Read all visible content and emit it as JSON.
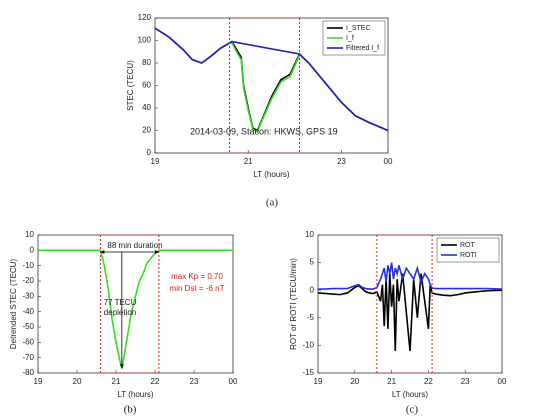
{
  "chart_data": [
    {
      "type": "line",
      "caption": "(a)",
      "xlabel": "LT (hours)",
      "ylabel": "STEC (TECU)",
      "annotations": [
        "2014-03-09, Station: HKWS, GPS 19"
      ],
      "xlim": [
        19,
        24
      ],
      "xticks": [
        19,
        21,
        23,
        {
          "value": 24,
          "label": "00"
        }
      ],
      "ylim": [
        0,
        120
      ],
      "yticks": [
        0,
        20,
        40,
        60,
        80,
        100,
        120
      ],
      "highlight": [
        20.6,
        22.1
      ],
      "highlight_color": "#e0201b",
      "legend": "upper right",
      "series": [
        {
          "name": "I_STEC",
          "color": "#000000",
          "x": [
            19,
            19.3,
            19.6,
            19.8,
            20,
            20.2,
            20.4,
            20.65,
            20.75,
            20.85,
            20.9,
            21,
            21.1,
            21.2,
            21.3,
            21.5,
            21.7,
            21.9,
            22.1,
            22.3,
            22.6,
            23,
            23.3,
            23.6,
            24
          ],
          "values": [
            111,
            103,
            92,
            83,
            80,
            86,
            93,
            99,
            92,
            85,
            60,
            40,
            22,
            20,
            30,
            50,
            65,
            70,
            88,
            80,
            65,
            45,
            33,
            27,
            20
          ]
        },
        {
          "name": "I_f",
          "color": "#33dd22",
          "x": [
            20.65,
            20.75,
            20.85,
            20.9,
            21,
            21.1,
            21.2,
            21.3,
            21.5,
            21.7,
            21.9,
            22.1
          ],
          "values": [
            98,
            90,
            83,
            58,
            38,
            21,
            19,
            29,
            48,
            63,
            68,
            87
          ]
        },
        {
          "name": "Filtered I_f",
          "color": "#2222bb",
          "x": [
            19,
            19.3,
            19.6,
            19.8,
            20,
            20.2,
            20.4,
            20.65,
            22.1,
            22.3,
            22.6,
            23,
            23.3,
            23.6,
            24
          ],
          "values": [
            111,
            103,
            92,
            83,
            80,
            86,
            93,
            99,
            88,
            80,
            65,
            45,
            33,
            27,
            20
          ]
        }
      ]
    },
    {
      "type": "line",
      "caption": "(b)",
      "xlabel": "LT (hours)",
      "ylabel": "Detrended STEC (TECU)",
      "annotations": [
        "88 min duration",
        "77 TECU",
        "depletion",
        "max Kp = 0.70",
        "min Dst = -6 nT"
      ],
      "xlim": [
        19,
        24
      ],
      "xticks": [
        19,
        20,
        21,
        22,
        23,
        {
          "value": 24,
          "label": "00"
        }
      ],
      "ylim": [
        -80,
        10
      ],
      "yticks": [
        -80,
        -70,
        -60,
        -50,
        -40,
        -30,
        -20,
        -10,
        0,
        10
      ],
      "highlight": [
        20.6,
        22.1
      ],
      "highlight_color": "#e0201b",
      "series": [
        {
          "color": "#33dd22",
          "x": [
            19,
            20.6,
            20.7,
            20.8,
            20.9,
            21,
            21.1,
            21.15,
            21.2,
            21.3,
            21.4,
            21.5,
            21.6,
            21.7,
            21.8,
            21.9,
            22,
            22.1,
            24
          ],
          "values": [
            0,
            0,
            -10,
            -25,
            -45,
            -60,
            -72,
            -77,
            -70,
            -55,
            -40,
            -30,
            -20,
            -15,
            -8,
            -5,
            -2,
            0,
            0
          ]
        }
      ]
    },
    {
      "type": "line",
      "caption": "(c)",
      "xlabel": "LT (hours)",
      "ylabel": "ROT or ROTI (TECU/min)",
      "xlim": [
        19,
        24
      ],
      "xticks": [
        19,
        20,
        21,
        22,
        23,
        {
          "value": 24,
          "label": "00"
        }
      ],
      "ylim": [
        -15,
        10
      ],
      "yticks": [
        -15,
        -10,
        -5,
        0,
        5,
        10
      ],
      "highlight": [
        20.6,
        22.1
      ],
      "highlight_color": "#e0201b",
      "legend": "upper right",
      "series": [
        {
          "name": "ROT",
          "color": "#000000",
          "x": [
            19,
            19.2,
            19.4,
            19.6,
            19.8,
            20,
            20.1,
            20.2,
            20.3,
            20.4,
            20.5,
            20.6,
            20.7,
            20.75,
            20.8,
            20.85,
            20.9,
            20.95,
            21,
            21.05,
            21.1,
            21.15,
            21.2,
            21.3,
            21.4,
            21.5,
            21.6,
            21.7,
            21.8,
            21.9,
            22,
            22.05,
            22.1,
            22.2,
            22.4,
            22.6,
            22.8,
            23,
            23.3,
            23.6,
            24
          ],
          "values": [
            -0.5,
            -0.6,
            -0.7,
            -0.8,
            -0.5,
            0.5,
            0.8,
            0.3,
            -0.3,
            -0.5,
            -0.6,
            -0.3,
            -2,
            1,
            -6.5,
            2,
            -7,
            3,
            -3,
            1,
            -11,
            2,
            -2,
            3,
            -4,
            -11,
            2,
            -5,
            3,
            -2,
            -7,
            1,
            -0.5,
            -0.7,
            -0.9,
            -1,
            -0.8,
            -0.5,
            -0.3,
            -0.1,
            0
          ]
        },
        {
          "name": "ROTI",
          "color": "#2233dd",
          "x": [
            19,
            19.2,
            19.4,
            19.6,
            19.8,
            20,
            20.1,
            20.2,
            20.3,
            20.4,
            20.5,
            20.6,
            20.7,
            20.75,
            20.8,
            20.85,
            20.9,
            20.95,
            21,
            21.05,
            21.1,
            21.15,
            21.2,
            21.3,
            21.4,
            21.5,
            21.6,
            21.7,
            21.8,
            21.9,
            22,
            22.05,
            22.1,
            22.2,
            22.4,
            22.6,
            22.8,
            23,
            23.3,
            23.6,
            24
          ],
          "values": [
            0.2,
            0.2,
            0.3,
            0.3,
            0.3,
            0.8,
            1,
            0.5,
            0.3,
            0.2,
            0.2,
            0.5,
            2,
            3,
            4,
            1.5,
            4.5,
            3,
            5,
            2,
            4,
            3,
            4.5,
            2,
            4,
            3,
            2,
            4,
            1.5,
            3,
            2,
            1,
            0.4,
            0.3,
            0.3,
            0.3,
            0.3,
            0.3,
            0.3,
            0.3,
            0.2
          ]
        }
      ]
    }
  ]
}
